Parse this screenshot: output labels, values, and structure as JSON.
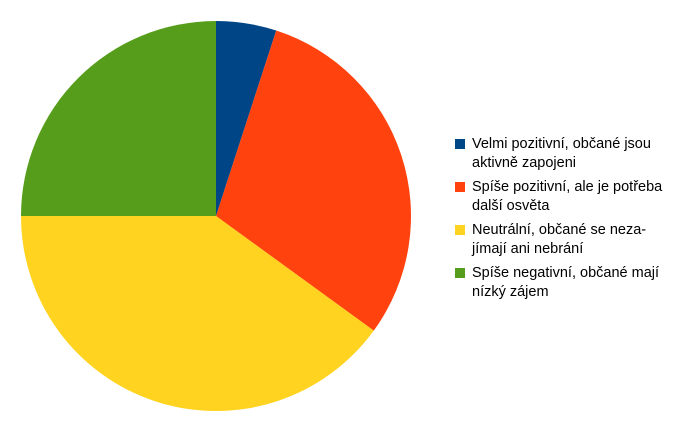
{
  "chart_data": {
    "type": "pie",
    "title": "",
    "start_angle_deg": 0,
    "direction": "clockwise",
    "legend_position": "right",
    "slices": [
      {
        "label": "Velmi pozitivní, občané jsou\naktivně zapojeni",
        "value": 5,
        "color": "#004586"
      },
      {
        "label": "Spíše pozitivní, ale je potřeba\ndalší osvěta",
        "value": 30,
        "color": "#ff420e"
      },
      {
        "label": "Neutrální, občané se neza-\njímají ani nebrání",
        "value": 40,
        "color": "#ffd320"
      },
      {
        "label": "Spíše negativní, občané mají\nnízký zájem",
        "value": 25,
        "color": "#579d1c"
      }
    ]
  }
}
